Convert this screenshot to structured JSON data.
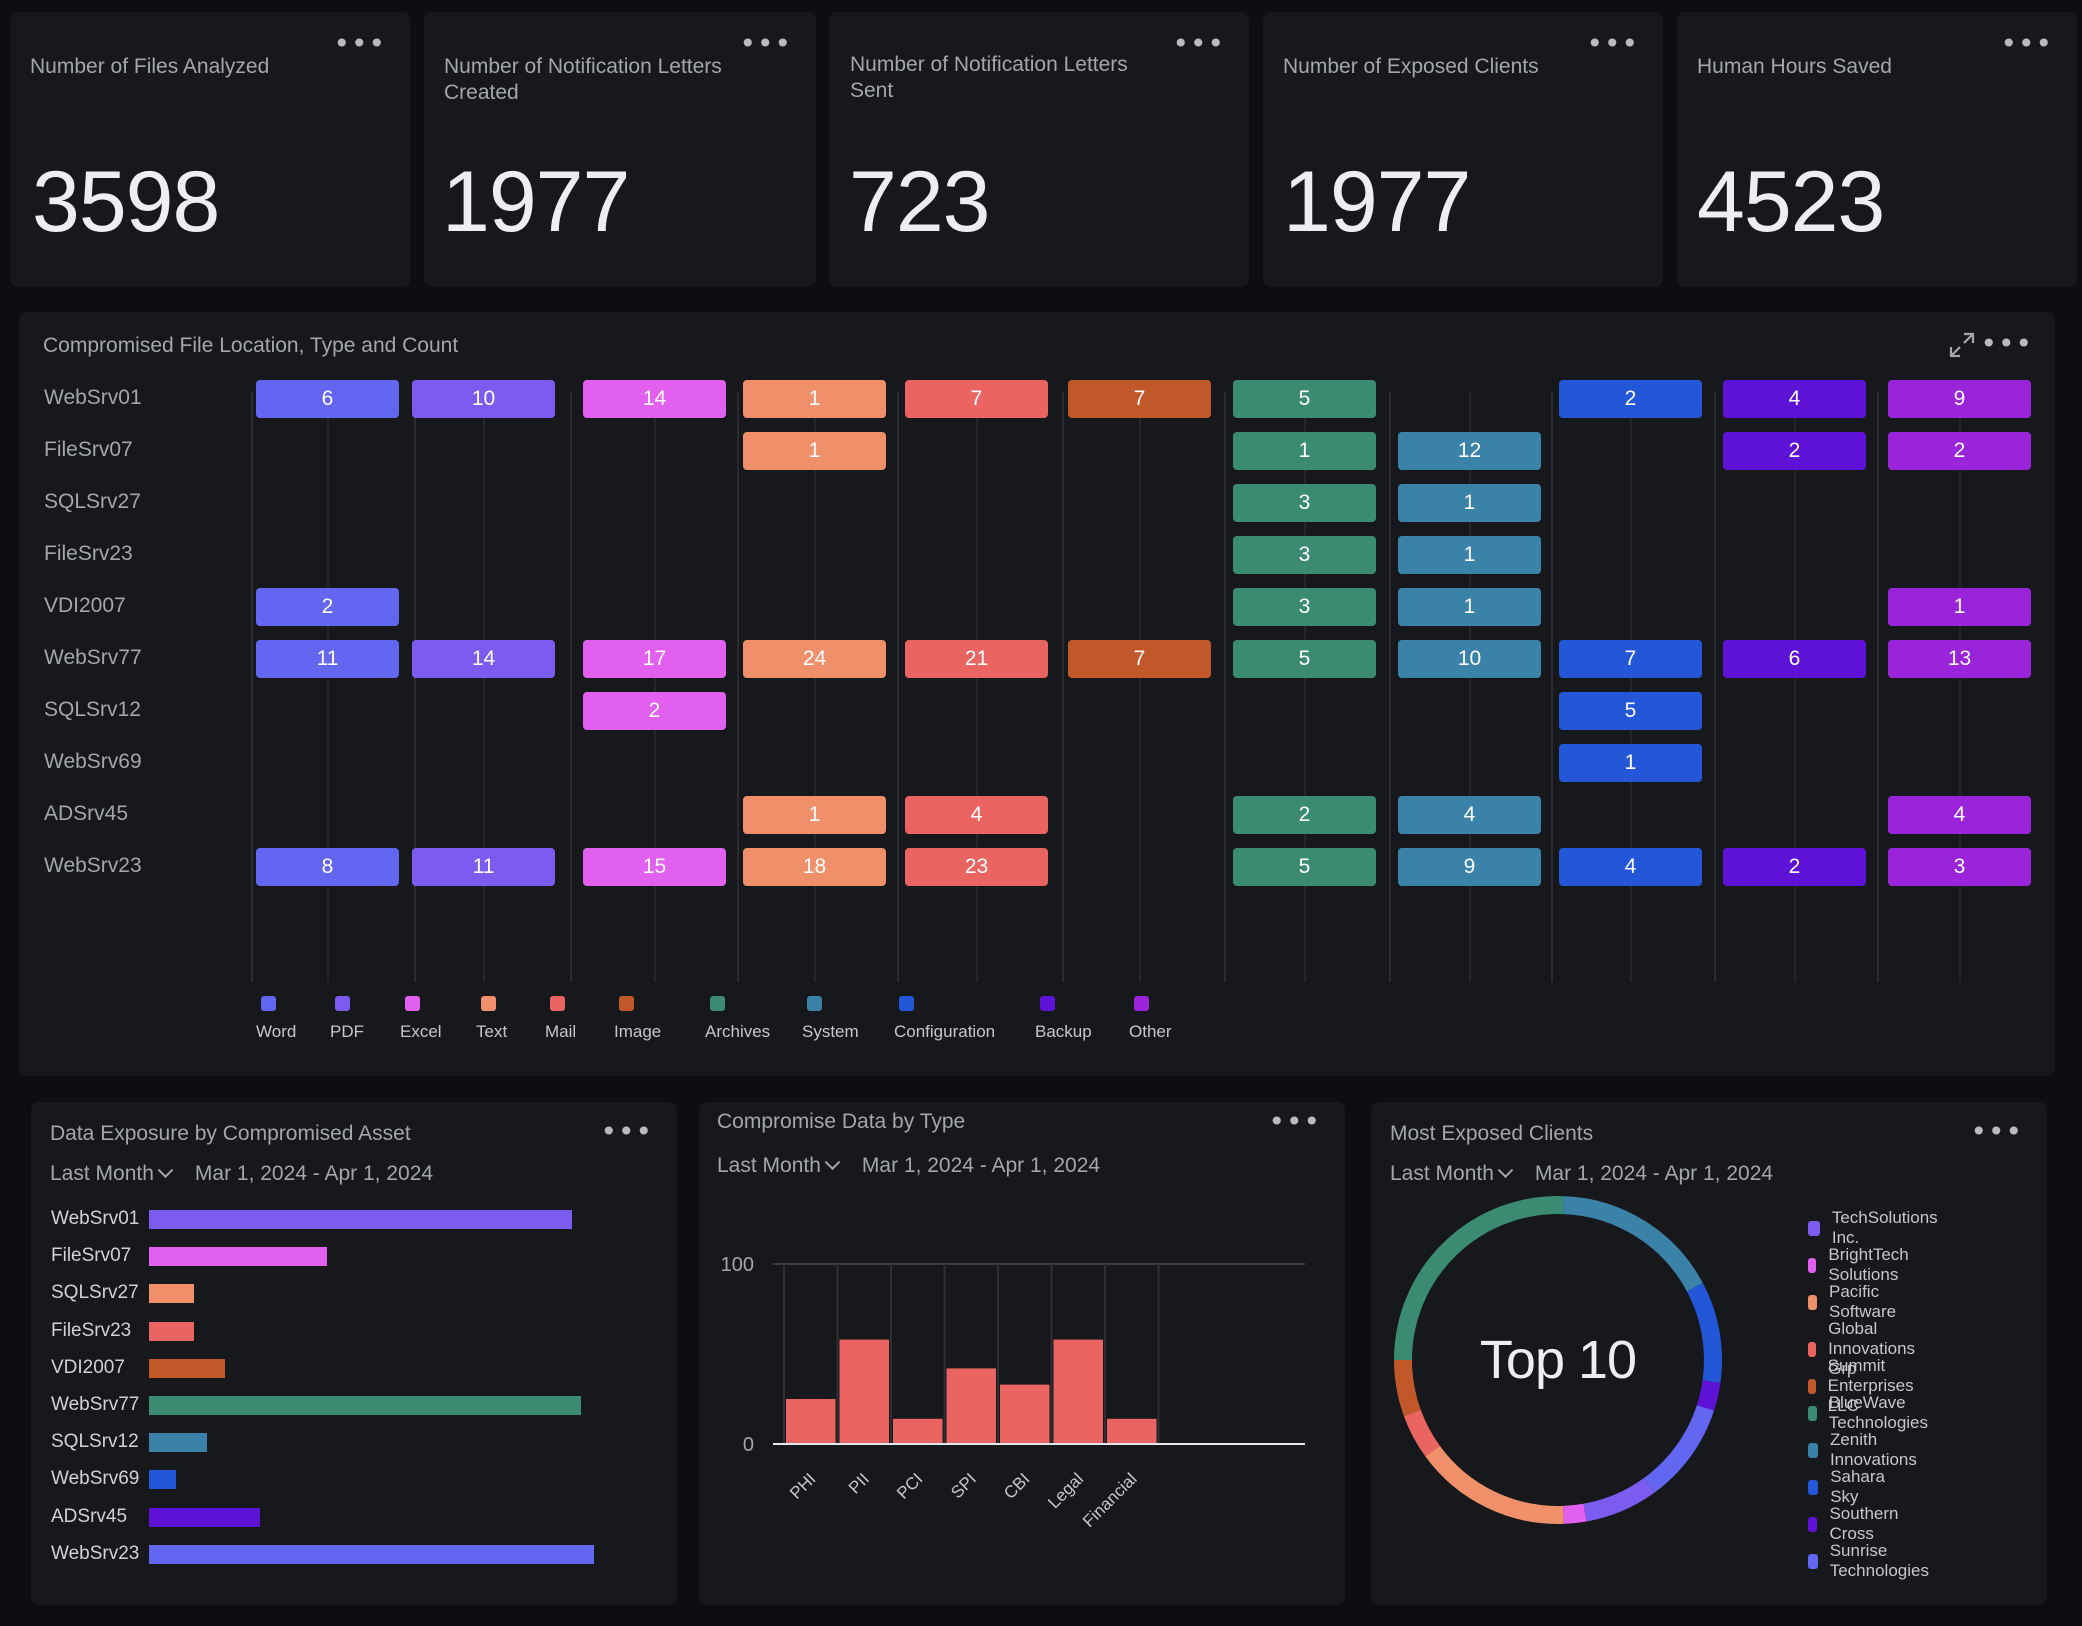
{
  "kpis": [
    {
      "title": "Number of Files Analyzed",
      "value": "3598"
    },
    {
      "title": "Number of Notification Letters Created",
      "value": "1977"
    },
    {
      "title": "Number of Notification Letters Sent",
      "value": "723"
    },
    {
      "title": "Number of Exposed Clients",
      "value": "1977"
    },
    {
      "title": "Human Hours Saved",
      "value": "4523"
    }
  ],
  "heatmap": {
    "title": "Compromised File Location, Type and Count",
    "rows": [
      "WebSrv01",
      "FileSrv07",
      "SQLSrv27",
      "FileSrv23",
      "VDI2007",
      "WebSrv77",
      "SQLSrv12",
      "WebSrv69",
      "ADSrv45",
      "WebSrv23"
    ],
    "types": [
      "Word",
      "PDF",
      "Excel",
      "Text",
      "Mail",
      "Image",
      "Archives",
      "System",
      "Configuration",
      "Backup",
      "Other"
    ],
    "colors": [
      "#6366f1",
      "#7c5cf0",
      "#e160f0",
      "#f0906a",
      "#ea6461",
      "#c0582a",
      "#3b8b72",
      "#3a82a8",
      "#2456d8",
      "#5d12d6",
      "#9a24da"
    ],
    "values": [
      [
        6,
        10,
        14,
        1,
        7,
        7,
        5,
        null,
        2,
        4,
        9
      ],
      [
        null,
        null,
        null,
        1,
        null,
        null,
        1,
        12,
        null,
        2,
        2
      ],
      [
        null,
        null,
        null,
        null,
        null,
        null,
        3,
        1,
        null,
        null,
        null
      ],
      [
        null,
        null,
        null,
        null,
        null,
        null,
        3,
        1,
        null,
        null,
        null
      ],
      [
        2,
        null,
        null,
        null,
        null,
        null,
        3,
        1,
        null,
        null,
        1
      ],
      [
        11,
        14,
        17,
        24,
        21,
        7,
        5,
        10,
        7,
        6,
        13
      ],
      [
        null,
        null,
        2,
        null,
        null,
        null,
        null,
        null,
        5,
        null,
        null
      ],
      [
        null,
        null,
        null,
        null,
        null,
        null,
        null,
        null,
        1,
        null,
        null
      ],
      [
        null,
        null,
        null,
        1,
        4,
        null,
        2,
        4,
        null,
        null,
        4
      ],
      [
        8,
        11,
        15,
        18,
        23,
        null,
        5,
        9,
        4,
        2,
        3
      ]
    ]
  },
  "exposure": {
    "title": "Data Exposure by Compromised Asset",
    "range_label": "Last Month",
    "date_range": "Mar 1, 2024 - Apr 1, 2024",
    "assets": [
      "WebSrv01",
      "FileSrv07",
      "SQLSrv27",
      "FileSrv23",
      "VDI2007",
      "WebSrv77",
      "SQLSrv12",
      "WebSrv69",
      "ADSrv45",
      "WebSrv23"
    ],
    "values": [
      95,
      40,
      10,
      10,
      17,
      97,
      13,
      6,
      25,
      100
    ],
    "colors": [
      "#7c5cf0",
      "#e160f0",
      "#f0906a",
      "#ea6461",
      "#c0582a",
      "#3b8b72",
      "#3a82a8",
      "#2456d8",
      "#5d12d6",
      "#6366f1"
    ]
  },
  "types_chart": {
    "title": "Compromise Data by Type",
    "range_label": "Last Month",
    "date_range": "Mar 1, 2024 - Apr 1, 2024",
    "bar_color": "#ea6461"
  },
  "clients": {
    "title": "Most Exposed Clients",
    "range_label": "Last Month",
    "date_range": "Mar 1, 2024 - Apr 1, 2024",
    "center_label": "Top 10",
    "legend": [
      {
        "name": "TechSolutions Inc.",
        "color": "#7c5cf0"
      },
      {
        "name": "BrightTech Solutions",
        "color": "#e160f0"
      },
      {
        "name": "Pacific Software",
        "color": "#f0906a"
      },
      {
        "name": "Global Innovations Grp",
        "color": "#ea6461"
      },
      {
        "name": "Summit Enterprises LLC",
        "color": "#c0582a"
      },
      {
        "name": "BlueWave Technologies",
        "color": "#3b8b72"
      },
      {
        "name": "Zenith Innovations",
        "color": "#3a82a8"
      },
      {
        "name": "Sahara Sky",
        "color": "#2456d8"
      },
      {
        "name": "Southern Cross",
        "color": "#5d12d6"
      },
      {
        "name": "Sunrise Technologies",
        "color": "#6366f1"
      }
    ],
    "segments": [
      {
        "color": "#3a82a8",
        "value": 15
      },
      {
        "color": "#2456d8",
        "value": 9
      },
      {
        "color": "#5d12d6",
        "value": 2.5
      },
      {
        "color": "#6366f1",
        "value": 9
      },
      {
        "color": "#7c5cf0",
        "value": 6.5
      },
      {
        "color": "#e160f0",
        "value": 2
      },
      {
        "color": "#f0906a",
        "value": 14
      },
      {
        "color": "#ea6461",
        "value": 4
      },
      {
        "color": "#c0582a",
        "value": 5
      },
      {
        "color": "#3b8b72",
        "value": 23
      }
    ]
  },
  "chart_data": [
    {
      "type": "bar",
      "title": "Compromise Data by Type",
      "categories": [
        "PHI",
        "PII",
        "PCI",
        "SPI",
        "CBI",
        "Legal",
        "Financial"
      ],
      "values": [
        25,
        58,
        14,
        42,
        33,
        58,
        14
      ],
      "ylim": [
        0,
        100
      ],
      "yticks": [
        0,
        100
      ],
      "grid": true
    },
    {
      "type": "bar",
      "title": "Data Exposure by Compromised Asset",
      "orientation": "horizontal",
      "categories": [
        "WebSrv01",
        "FileSrv07",
        "SQLSrv27",
        "FileSrv23",
        "VDI2007",
        "WebSrv77",
        "SQLSrv12",
        "WebSrv69",
        "ADSrv45",
        "WebSrv23"
      ],
      "values": [
        95,
        40,
        10,
        10,
        17,
        97,
        13,
        6,
        25,
        100
      ]
    }
  ]
}
